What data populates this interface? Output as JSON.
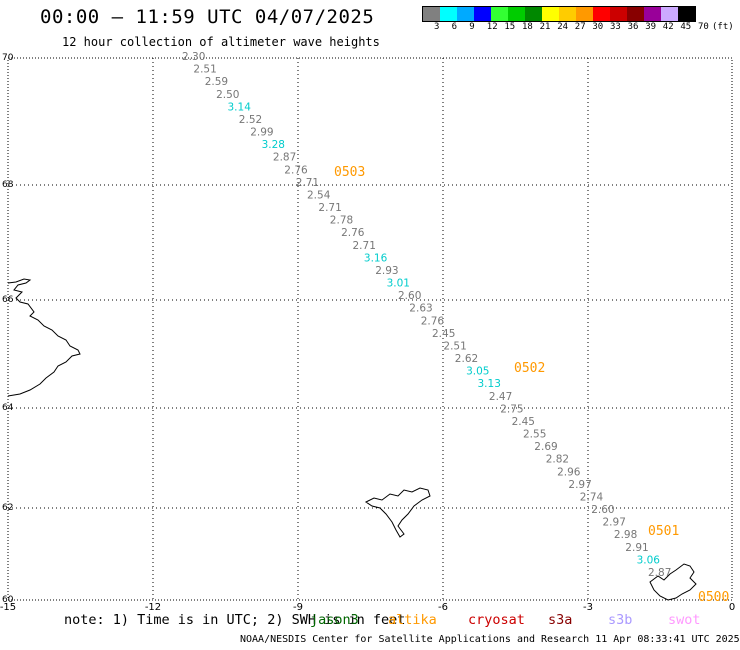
{
  "title": "00:00 — 11:59 UTC 04/07/2025",
  "subtitle": "12 hour collection of altimeter wave heights",
  "scale": {
    "unit": "(ft)",
    "labels": [
      "3",
      "6",
      "9",
      "12",
      "15",
      "18",
      "21",
      "24",
      "27",
      "30",
      "33",
      "36",
      "39",
      "42",
      "45",
      "70"
    ],
    "colors": [
      "#808080",
      "#00ffff",
      "#00aaff",
      "#0000ff",
      "#33ff33",
      "#00cc00",
      "#008800",
      "#ffff00",
      "#ffcc00",
      "#ff9900",
      "#ff0000",
      "#cc0000",
      "#880000",
      "#990099",
      "#ccaaff",
      "#000000"
    ]
  },
  "axes": {
    "lat_labels": [
      "70",
      "68",
      "66",
      "64",
      "62",
      "60"
    ],
    "lon_labels": [
      "-15",
      "-12",
      "-9",
      "-6",
      "-3",
      "0"
    ]
  },
  "track": {
    "points": [
      {
        "v": "2.30",
        "c": "gray"
      },
      {
        "v": "2.51",
        "c": "gray"
      },
      {
        "v": "2.59",
        "c": "gray"
      },
      {
        "v": "2.50",
        "c": "gray"
      },
      {
        "v": "3.14",
        "c": "cyan"
      },
      {
        "v": "2.52",
        "c": "gray"
      },
      {
        "v": "2.99",
        "c": "gray"
      },
      {
        "v": "3.28",
        "c": "cyan"
      },
      {
        "v": "2.87",
        "c": "gray"
      },
      {
        "v": "2.76",
        "c": "gray"
      },
      {
        "v": "2.71",
        "c": "gray"
      },
      {
        "v": "2.54",
        "c": "gray"
      },
      {
        "v": "2.71",
        "c": "gray"
      },
      {
        "v": "2.78",
        "c": "gray"
      },
      {
        "v": "2.76",
        "c": "gray"
      },
      {
        "v": "2.71",
        "c": "gray"
      },
      {
        "v": "3.16",
        "c": "cyan"
      },
      {
        "v": "2.93",
        "c": "gray"
      },
      {
        "v": "3.01",
        "c": "cyan"
      },
      {
        "v": "2.60",
        "c": "gray"
      },
      {
        "v": "2.63",
        "c": "gray"
      },
      {
        "v": "2.76",
        "c": "gray"
      },
      {
        "v": "2.45",
        "c": "gray"
      },
      {
        "v": "2.51",
        "c": "gray"
      },
      {
        "v": "2.62",
        "c": "gray"
      },
      {
        "v": "3.05",
        "c": "cyan"
      },
      {
        "v": "3.13",
        "c": "cyan"
      },
      {
        "v": "2.47",
        "c": "gray"
      },
      {
        "v": "2.75",
        "c": "gray"
      },
      {
        "v": "2.45",
        "c": "gray"
      },
      {
        "v": "2.55",
        "c": "gray"
      },
      {
        "v": "2.69",
        "c": "gray"
      },
      {
        "v": "2.82",
        "c": "gray"
      },
      {
        "v": "2.96",
        "c": "gray"
      },
      {
        "v": "2.97",
        "c": "gray"
      },
      {
        "v": "2.74",
        "c": "gray"
      },
      {
        "v": "2.60",
        "c": "gray"
      },
      {
        "v": "2.97",
        "c": "gray"
      },
      {
        "v": "2.98",
        "c": "gray"
      },
      {
        "v": "2.91",
        "c": "gray"
      },
      {
        "v": "3.06",
        "c": "cyan"
      },
      {
        "v": "2.87",
        "c": "gray"
      }
    ],
    "time_labels": [
      "0503",
      "0502",
      "0501",
      "0500"
    ],
    "time_color": "#ff9900",
    "value_colors": {
      "gray": "#777777",
      "cyan": "#00cccc"
    }
  },
  "footer": {
    "note_prefix": "note: 1) Time is in UTC; 2) SWH is in feet",
    "satellites": [
      {
        "name": "jason3",
        "color": "#006600"
      },
      {
        "name": "altika",
        "color": "#ff9900"
      },
      {
        "name": "cryosat",
        "color": "#cc0000"
      },
      {
        "name": "s3a",
        "color": "#880000"
      },
      {
        "name": "s3b",
        "color": "#aa99ff"
      },
      {
        "name": "swot",
        "color": "#ff99ff"
      }
    ],
    "credit": "NOAA/NESDIS Center for Satellite Applications and Research    11 Apr 08:33:41 UTC 2025"
  }
}
